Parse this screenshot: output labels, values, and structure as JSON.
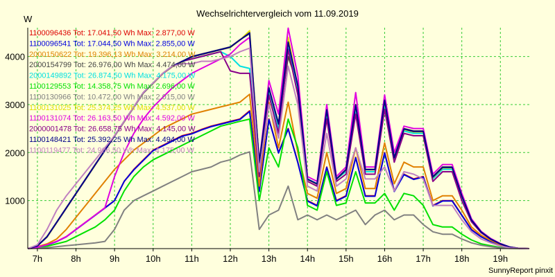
{
  "chart_data": {
    "type": "line",
    "title": "Wechselrichtervergleich vom 11.09.2019",
    "ylabel": "W",
    "footer": "SunnyReport pinxit",
    "ylim": [
      0,
      4600
    ],
    "yticks": [
      1000,
      2000,
      3000,
      4000
    ],
    "xlim": [
      6.75,
      19.75
    ],
    "xticks": [
      {
        "value": 7,
        "label": "7h"
      },
      {
        "value": 8,
        "label": "8h"
      },
      {
        "value": 9,
        "label": "9h"
      },
      {
        "value": 10,
        "label": "10h"
      },
      {
        "value": 11,
        "label": "11h"
      },
      {
        "value": 12,
        "label": "12h"
      },
      {
        "value": 13,
        "label": "13h"
      },
      {
        "value": 14,
        "label": "14h"
      },
      {
        "value": 15,
        "label": "15h"
      },
      {
        "value": 16,
        "label": "16h"
      },
      {
        "value": 17,
        "label": "17h"
      },
      {
        "value": 18,
        "label": "18h"
      },
      {
        "value": 19,
        "label": "19h"
      }
    ],
    "x": [
      6.75,
      7.0,
      7.25,
      7.5,
      7.75,
      8.0,
      8.25,
      8.5,
      8.75,
      9.0,
      9.25,
      9.5,
      9.75,
      10.0,
      10.25,
      10.5,
      10.75,
      11.0,
      11.25,
      11.5,
      11.75,
      12.0,
      12.25,
      12.5,
      12.75,
      13.0,
      13.25,
      13.5,
      13.75,
      14.0,
      14.25,
      14.5,
      14.75,
      15.0,
      15.25,
      15.5,
      15.75,
      16.0,
      16.25,
      16.5,
      16.75,
      17.0,
      17.25,
      17.5,
      17.75,
      18.0,
      18.25,
      18.5,
      18.75,
      19.0,
      19.25,
      19.5,
      19.75
    ],
    "series": [
      {
        "legend": "1100096436 Tot: 17.041,50 Wh Max: 2.877,00 W",
        "color": "#DD0000",
        "values": [
          0,
          30,
          80,
          150,
          250,
          400,
          550,
          700,
          850,
          1000,
          1400,
          1650,
          1850,
          2050,
          2150,
          2250,
          2350,
          2400,
          2480,
          2550,
          2600,
          2650,
          2700,
          2870,
          1200,
          2700,
          2000,
          2500,
          1800,
          1000,
          900,
          1700,
          1000,
          1100,
          1900,
          1100,
          1100,
          2000,
          1200,
          1550,
          1450,
          1500,
          900,
          1000,
          1000,
          700,
          400,
          250,
          150,
          70,
          20,
          5,
          0
        ]
      },
      {
        "legend": "1100096541 Tot: 17.044,50 Wh Max: 2.855,00 W",
        "color": "#0000DD",
        "values": [
          0,
          25,
          75,
          145,
          245,
          395,
          545,
          695,
          845,
          1000,
          1400,
          1640,
          1840,
          2040,
          2140,
          2240,
          2340,
          2390,
          2470,
          2540,
          2590,
          2640,
          2690,
          2855,
          1190,
          2690,
          1990,
          2490,
          1790,
          990,
          890,
          1690,
          990,
          1090,
          1890,
          1090,
          1090,
          1990,
          1190,
          1540,
          1440,
          1490,
          890,
          990,
          990,
          690,
          390,
          245,
          145,
          65,
          18,
          5,
          0
        ]
      },
      {
        "legend": "2000150622 Tot: 19.396,13 Wh Max: 3.214,00 W",
        "color": "#E08000",
        "values": [
          0,
          40,
          100,
          200,
          400,
          650,
          900,
          1150,
          1400,
          1650,
          1850,
          2050,
          2200,
          2350,
          2500,
          2600,
          2700,
          2800,
          2850,
          2900,
          2950,
          3000,
          3050,
          3214,
          1300,
          3050,
          2100,
          3050,
          2000,
          1150,
          1050,
          2000,
          1150,
          1250,
          2100,
          1250,
          1250,
          2200,
          1350,
          1800,
          1700,
          1700,
          1000,
          1100,
          1100,
          800,
          450,
          280,
          170,
          80,
          25,
          5,
          0
        ]
      },
      {
        "legend": "2000154799 Tot: 26.976,00 Wh Max: 4.474,00 W",
        "color": "#444444",
        "values": [
          0,
          60,
          250,
          550,
          850,
          1150,
          1450,
          1750,
          2050,
          2350,
          2650,
          2950,
          3250,
          3450,
          3650,
          3800,
          3900,
          4000,
          4050,
          4100,
          4150,
          4200,
          4350,
          4474,
          1800,
          3350,
          2600,
          4000,
          3400,
          1450,
          1350,
          2900,
          1450,
          1650,
          3000,
          1650,
          1650,
          3100,
          1900,
          2500,
          2450,
          2450,
          1500,
          1700,
          1700,
          1100,
          600,
          350,
          200,
          100,
          30,
          5,
          0
        ]
      },
      {
        "legend": "2000149892 Tot: 26.874,50 Wh Max: 4.175,00 W",
        "color": "#00E0E0",
        "values": [
          0,
          60,
          250,
          550,
          850,
          1150,
          1450,
          1750,
          2050,
          2350,
          2650,
          2950,
          3250,
          3450,
          3650,
          3800,
          3900,
          3950,
          4000,
          4050,
          4100,
          4000,
          3800,
          3750,
          1600,
          3300,
          2500,
          4175,
          3300,
          1450,
          1350,
          2800,
          1450,
          1600,
          2900,
          1600,
          1600,
          3000,
          1850,
          2450,
          2400,
          2400,
          1450,
          1650,
          1650,
          1050,
          580,
          340,
          200,
          95,
          28,
          5,
          0
        ]
      },
      {
        "legend": "1100129553 Tot: 14.358,75 Wh Max: 2.696,00 W",
        "color": "#00E000",
        "values": [
          0,
          20,
          50,
          100,
          150,
          250,
          350,
          450,
          600,
          800,
          1200,
          1500,
          1700,
          1850,
          1950,
          2050,
          2150,
          2250,
          2350,
          2450,
          2550,
          2600,
          2650,
          2696,
          1000,
          2100,
          1700,
          2696,
          2100,
          900,
          800,
          1600,
          900,
          950,
          1600,
          950,
          950,
          1150,
          800,
          1150,
          1100,
          900,
          500,
          450,
          450,
          300,
          180,
          100,
          60,
          25,
          8,
          2,
          0
        ]
      },
      {
        "legend": "1100130966 Tot: 10.472,00 Wh Max: 2.015,00 W",
        "color": "#808080",
        "values": [
          0,
          10,
          20,
          40,
          60,
          80,
          100,
          120,
          150,
          400,
          800,
          1000,
          1100,
          1200,
          1300,
          1400,
          1500,
          1600,
          1650,
          1700,
          1800,
          1850,
          1950,
          2015,
          400,
          700,
          800,
          1300,
          600,
          700,
          600,
          700,
          600,
          700,
          800,
          500,
          700,
          800,
          600,
          700,
          700,
          500,
          350,
          300,
          300,
          200,
          120,
          70,
          40,
          15,
          5,
          2,
          0
        ]
      },
      {
        "legend": "1100131025 Tot: 25.374,25 Wh Max: 4.537,00 W",
        "color": "#E0E000",
        "values": [
          0,
          55,
          240,
          540,
          840,
          1140,
          1440,
          1740,
          2040,
          2340,
          2640,
          2940,
          3240,
          3440,
          3640,
          3790,
          3890,
          3990,
          4040,
          4090,
          4140,
          4190,
          4340,
          4537,
          1780,
          3340,
          2590,
          4400,
          3380,
          1440,
          1340,
          2880,
          1440,
          1640,
          2980,
          1640,
          1640,
          3080,
          1880,
          2480,
          2430,
          2430,
          1480,
          1680,
          1680,
          1090,
          590,
          345,
          195,
          98,
          30,
          5,
          0
        ]
      },
      {
        "legend": "1100131074 Tot: 26.163,50 Wh Max: 4.592,00 W",
        "color": "#E000E0",
        "values": [
          0,
          30,
          80,
          150,
          250,
          400,
          550,
          700,
          850,
          1500,
          2000,
          2400,
          2700,
          2950,
          3150,
          3350,
          3500,
          3650,
          3750,
          3850,
          3950,
          4050,
          4250,
          4400,
          1800,
          3500,
          2800,
          4592,
          3600,
          1500,
          1400,
          3000,
          1500,
          1700,
          3250,
          1700,
          1700,
          3200,
          2000,
          2550,
          2500,
          2500,
          1550,
          1750,
          1750,
          1150,
          620,
          360,
          210,
          105,
          32,
          5,
          0
        ]
      },
      {
        "legend": "2000001478 Tot: 26.658,75 Wh Max: 4.145,00 W",
        "color": "#880088",
        "values": [
          0,
          60,
          250,
          550,
          850,
          1150,
          1450,
          1750,
          2050,
          2350,
          2650,
          2950,
          3250,
          3450,
          3650,
          3800,
          3900,
          3950,
          4000,
          4050,
          4100,
          3700,
          3650,
          3650,
          1500,
          3200,
          2400,
          4145,
          3200,
          1400,
          1300,
          2700,
          1400,
          1550,
          2800,
          1550,
          1550,
          2900,
          1800,
          2400,
          2350,
          2350,
          1400,
          1600,
          1600,
          1000,
          560,
          330,
          195,
          92,
          27,
          5,
          0
        ]
      },
      {
        "legend": "1100148421 Tot: 25.392,25 Wh Max: 4.494,00 W",
        "color": "#000088",
        "values": [
          0,
          55,
          245,
          545,
          845,
          1145,
          1445,
          1745,
          2045,
          2345,
          2645,
          2945,
          3245,
          3445,
          3645,
          3795,
          3895,
          3995,
          4045,
          4095,
          4145,
          4195,
          4345,
          4494,
          1790,
          3345,
          2595,
          4300,
          3390,
          1445,
          1345,
          2890,
          1445,
          1645,
          2990,
          1645,
          1645,
          3090,
          1890,
          2490,
          2440,
          2440,
          1490,
          1690,
          1690,
          1095,
          595,
          348,
          198,
          99,
          30,
          5,
          0
        ]
      },
      {
        "legend": "1100119477 Tot: 24.906,50 Wh Max: 4.175,00 W",
        "color": "#C080C0",
        "values": [
          0,
          80,
          400,
          800,
          1100,
          1350,
          1600,
          1850,
          2100,
          2350,
          2650,
          2950,
          3250,
          3450,
          3650,
          3800,
          3850,
          3850,
          3900,
          3900,
          3950,
          4000,
          4100,
          4175,
          1600,
          3000,
          2300,
          3800,
          3000,
          1300,
          1200,
          2400,
          1300,
          1450,
          2100,
          1450,
          1450,
          1700,
          1200,
          1600,
          1550,
          1450,
          900,
          900,
          900,
          600,
          350,
          200,
          120,
          55,
          15,
          3,
          0
        ]
      }
    ]
  }
}
